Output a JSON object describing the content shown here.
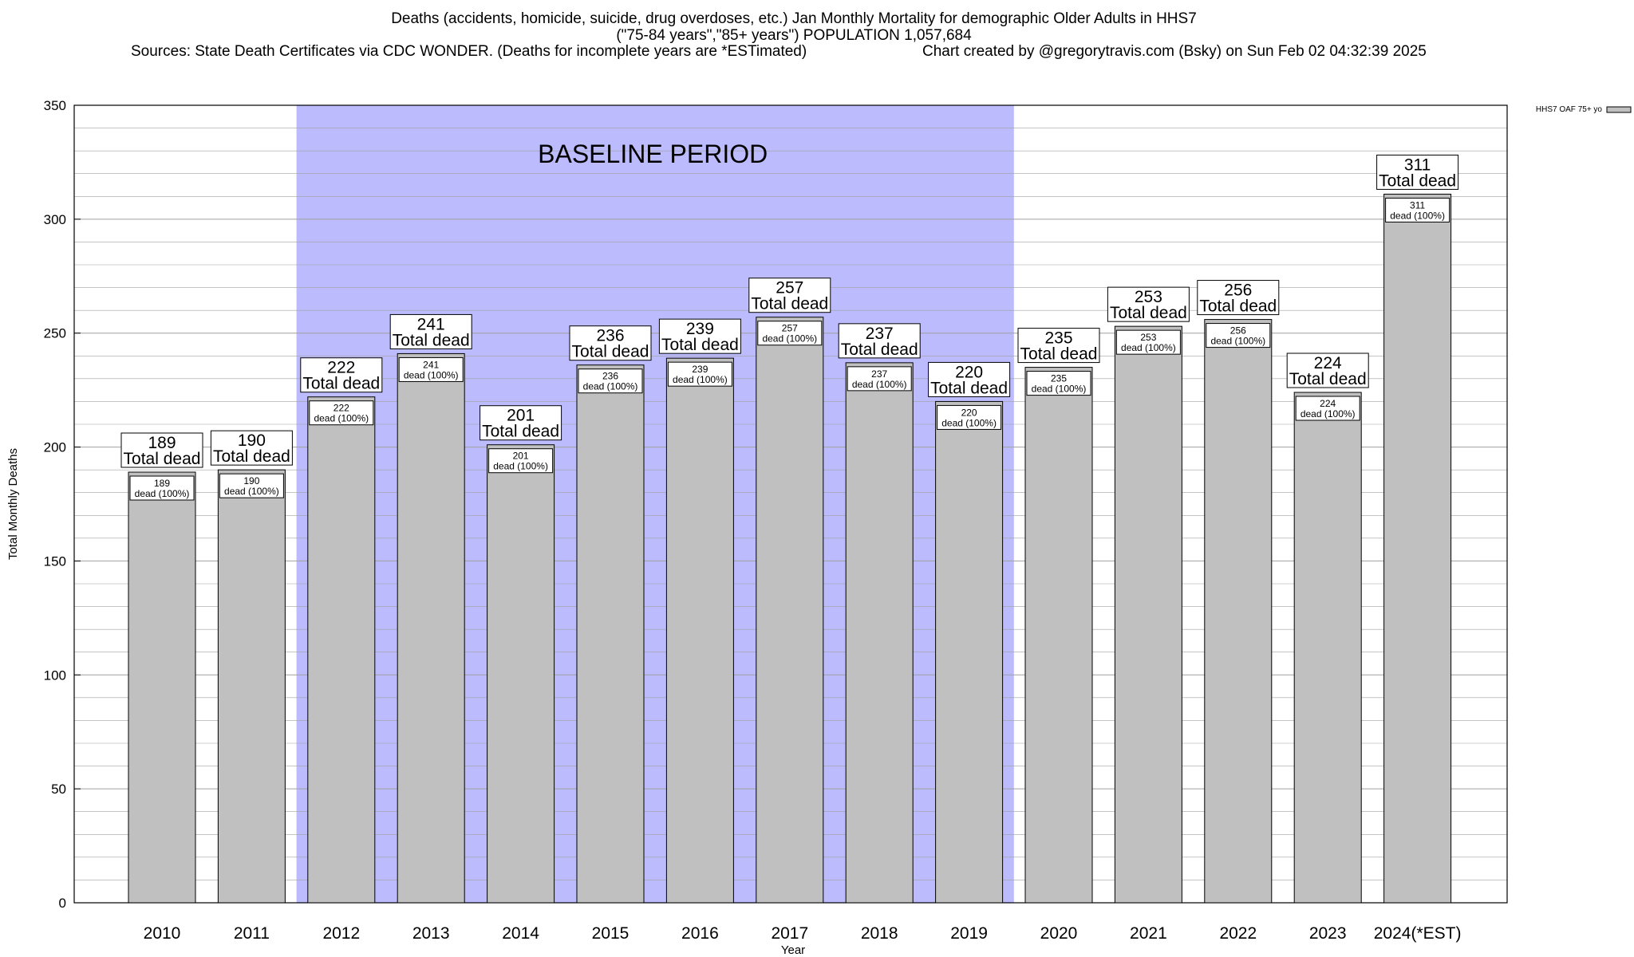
{
  "chart_data": {
    "type": "bar",
    "title": "Deaths (accidents, homicide, suicide, drug overdoses, etc.) Jan Monthly Mortality for demographic Older Adults in HHS7",
    "subtitle": "(\"75-84 years\",\"85+ years\") POPULATION 1,057,684",
    "sources": "Sources: State Death Certificates via CDC WONDER. (Deaths for incomplete years are *ESTimated)",
    "credit": "Chart created by @gregorytravis.com (Bsky) on Sun Feb 02 04:32:39 2025",
    "xlabel": "Year",
    "ylabel": "Total Monthly Deaths",
    "ylim": [
      0,
      350
    ],
    "yticks": [
      0,
      50,
      100,
      150,
      200,
      250,
      300,
      350
    ],
    "grid": true,
    "legend_position": "top-right",
    "categories": [
      "2010",
      "2011",
      "2012",
      "2013",
      "2014",
      "2015",
      "2016",
      "2017",
      "2018",
      "2019",
      "2020",
      "2021",
      "2022",
      "2023",
      "2024(*EST)"
    ],
    "series": [
      {
        "name": "HHS7 OAF 75+ yo",
        "values": [
          189,
          190,
          222,
          241,
          201,
          236,
          239,
          257,
          237,
          220,
          235,
          253,
          256,
          224,
          311
        ]
      }
    ],
    "label_top_suffix": "Total dead",
    "label_inner_suffix": "dead (100%)",
    "baseline": {
      "label": "BASELINE PERIOD",
      "from": "2012",
      "to": "2019"
    },
    "colors": {
      "bar": "#c0c0c0",
      "baseline": "#bbbbfd",
      "grid": "#a0a0a0"
    }
  }
}
